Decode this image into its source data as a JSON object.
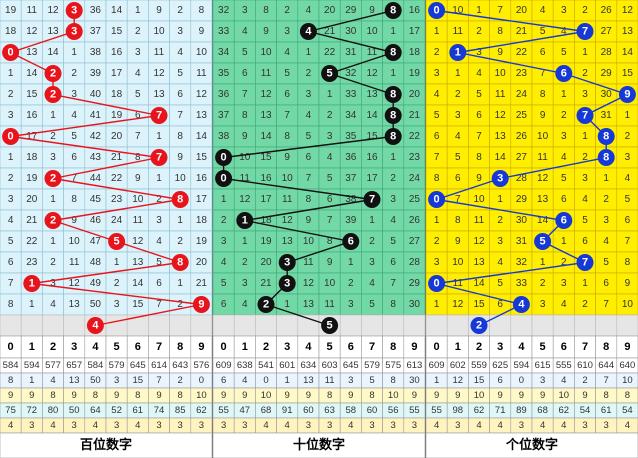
{
  "header": [
    0,
    1,
    2,
    3,
    4,
    5,
    6,
    7,
    8,
    9
  ],
  "panels": [
    {
      "label": "百位数字",
      "rows": [
        {
          "cells": [
            19,
            11,
            12,
            null,
            36,
            14,
            1,
            9,
            2,
            8
          ],
          "drawn": 3
        },
        {
          "cells": [
            18,
            12,
            13,
            null,
            37,
            15,
            2,
            10,
            3,
            9
          ],
          "drawn": 3
        },
        {
          "cells": [
            null,
            13,
            14,
            1,
            38,
            16,
            3,
            11,
            4,
            10
          ],
          "drawn": 0
        },
        {
          "cells": [
            1,
            14,
            null,
            2,
            39,
            17,
            4,
            12,
            5,
            11
          ],
          "drawn": 2
        },
        {
          "cells": [
            2,
            15,
            null,
            3,
            40,
            18,
            5,
            13,
            6,
            12
          ],
          "drawn": 2
        },
        {
          "cells": [
            3,
            16,
            1,
            4,
            41,
            19,
            6,
            null,
            7,
            13
          ],
          "drawn": 7
        },
        {
          "cells": [
            null,
            17,
            2,
            5,
            42,
            20,
            7,
            1,
            8,
            14
          ],
          "drawn": 0
        },
        {
          "cells": [
            1,
            18,
            3,
            6,
            43,
            21,
            8,
            null,
            9,
            15
          ],
          "drawn": 7
        },
        {
          "cells": [
            2,
            19,
            null,
            7,
            44,
            22,
            9,
            1,
            10,
            16
          ],
          "drawn": 2
        },
        {
          "cells": [
            3,
            20,
            1,
            8,
            45,
            23,
            10,
            2,
            null,
            17
          ],
          "drawn": 8
        },
        {
          "cells": [
            4,
            21,
            null,
            9,
            46,
            24,
            11,
            3,
            1,
            18
          ],
          "drawn": 2
        },
        {
          "cells": [
            5,
            22,
            1,
            10,
            47,
            null,
            12,
            4,
            2,
            19
          ],
          "drawn": 5
        },
        {
          "cells": [
            6,
            23,
            2,
            11,
            48,
            1,
            13,
            5,
            null,
            20
          ],
          "drawn": 8
        },
        {
          "cells": [
            7,
            null,
            3,
            12,
            49,
            2,
            14,
            6,
            1,
            21
          ],
          "drawn": 1
        },
        {
          "cells": [
            8,
            1,
            4,
            13,
            50,
            3,
            15,
            7,
            2,
            null
          ],
          "drawn": 9
        },
        {
          "drawn": 4
        }
      ],
      "stats": [
        [
          584,
          594,
          577,
          657,
          584,
          579,
          645,
          614,
          643,
          576
        ],
        [
          8,
          1,
          4,
          13,
          50,
          3,
          15,
          7,
          2,
          0
        ],
        [
          9,
          9,
          8,
          9,
          8,
          9,
          8,
          9,
          8,
          10
        ],
        [
          75,
          72,
          80,
          50,
          64,
          52,
          61,
          74,
          85,
          62
        ],
        [
          4,
          3,
          4,
          3,
          4,
          3,
          4,
          3,
          3,
          3
        ]
      ]
    },
    {
      "label": "十位数字",
      "rows": [
        {
          "cells": [
            32,
            3,
            8,
            2,
            4,
            20,
            29,
            9,
            null,
            16
          ],
          "drawn": 8
        },
        {
          "cells": [
            33,
            4,
            9,
            3,
            null,
            21,
            30,
            10,
            1,
            17
          ],
          "drawn": 4
        },
        {
          "cells": [
            34,
            5,
            10,
            4,
            1,
            22,
            31,
            11,
            null,
            18
          ],
          "drawn": 8
        },
        {
          "cells": [
            35,
            6,
            11,
            5,
            2,
            null,
            32,
            12,
            1,
            19
          ],
          "drawn": 5
        },
        {
          "cells": [
            36,
            7,
            12,
            6,
            3,
            1,
            33,
            13,
            null,
            20
          ],
          "drawn": 8
        },
        {
          "cells": [
            37,
            8,
            13,
            7,
            4,
            2,
            34,
            14,
            null,
            21
          ],
          "drawn": 8
        },
        {
          "cells": [
            38,
            9,
            14,
            8,
            5,
            3,
            35,
            15,
            null,
            22
          ],
          "drawn": 8
        },
        {
          "cells": [
            null,
            10,
            15,
            9,
            6,
            4,
            36,
            16,
            1,
            23
          ],
          "drawn": 0
        },
        {
          "cells": [
            null,
            11,
            16,
            10,
            7,
            5,
            37,
            17,
            2,
            24
          ],
          "drawn": 0
        },
        {
          "cells": [
            1,
            12,
            17,
            11,
            8,
            6,
            38,
            null,
            3,
            25
          ],
          "drawn": 7
        },
        {
          "cells": [
            2,
            null,
            18,
            12,
            9,
            7,
            39,
            1,
            4,
            26
          ],
          "drawn": 1
        },
        {
          "cells": [
            3,
            1,
            19,
            13,
            10,
            8,
            null,
            2,
            5,
            27
          ],
          "drawn": 6
        },
        {
          "cells": [
            4,
            2,
            20,
            null,
            11,
            9,
            1,
            3,
            6,
            28
          ],
          "drawn": 3
        },
        {
          "cells": [
            5,
            3,
            21,
            null,
            12,
            10,
            2,
            4,
            7,
            29
          ],
          "drawn": 3
        },
        {
          "cells": [
            6,
            4,
            null,
            1,
            13,
            11,
            3,
            5,
            8,
            30
          ],
          "drawn": 2
        },
        {
          "drawn": 5
        }
      ],
      "stats": [
        [
          609,
          638,
          541,
          601,
          634,
          603,
          645,
          579,
          575,
          613
        ],
        [
          6,
          4,
          0,
          1,
          13,
          11,
          3,
          5,
          8,
          30
        ],
        [
          9,
          9,
          10,
          9,
          9,
          8,
          9,
          8,
          10,
          9
        ],
        [
          55,
          47,
          68,
          91,
          60,
          63,
          58,
          60,
          56,
          55
        ],
        [
          3,
          3,
          4,
          4,
          3,
          3,
          4,
          3,
          3,
          3
        ]
      ]
    },
    {
      "label": "个位数字",
      "rows": [
        {
          "cells": [
            null,
            10,
            1,
            7,
            20,
            4,
            3,
            2,
            26,
            12
          ],
          "drawn": 0
        },
        {
          "cells": [
            1,
            11,
            2,
            8,
            21,
            5,
            4,
            null,
            27,
            13
          ],
          "drawn": 7
        },
        {
          "cells": [
            2,
            null,
            3,
            9,
            22,
            6,
            5,
            1,
            28,
            14
          ],
          "drawn": 1
        },
        {
          "cells": [
            3,
            1,
            4,
            10,
            23,
            7,
            null,
            2,
            29,
            15
          ],
          "drawn": 6
        },
        {
          "cells": [
            4,
            2,
            5,
            11,
            24,
            8,
            1,
            3,
            30,
            null
          ],
          "drawn": 9
        },
        {
          "cells": [
            5,
            3,
            6,
            12,
            25,
            9,
            2,
            null,
            31,
            1
          ],
          "drawn": 7
        },
        {
          "cells": [
            6,
            4,
            7,
            13,
            26,
            10,
            3,
            1,
            null,
            2
          ],
          "drawn": 8
        },
        {
          "cells": [
            7,
            5,
            8,
            14,
            27,
            11,
            4,
            2,
            null,
            3
          ],
          "drawn": 8
        },
        {
          "cells": [
            8,
            6,
            9,
            null,
            28,
            12,
            5,
            3,
            1,
            4
          ],
          "drawn": 3
        },
        {
          "cells": [
            null,
            7,
            10,
            1,
            29,
            13,
            6,
            4,
            2,
            5
          ],
          "drawn": 0
        },
        {
          "cells": [
            1,
            8,
            11,
            2,
            30,
            14,
            null,
            5,
            3,
            6
          ],
          "drawn": 6
        },
        {
          "cells": [
            2,
            9,
            12,
            3,
            31,
            null,
            1,
            6,
            4,
            7
          ],
          "drawn": 5
        },
        {
          "cells": [
            3,
            10,
            13,
            4,
            32,
            1,
            2,
            null,
            5,
            8
          ],
          "drawn": 7
        },
        {
          "cells": [
            null,
            11,
            14,
            5,
            33,
            2,
            3,
            1,
            6,
            9
          ],
          "drawn": 0
        },
        {
          "cells": [
            1,
            12,
            15,
            6,
            null,
            3,
            4,
            2,
            7,
            10
          ],
          "drawn": 4
        },
        {
          "drawn": 2
        }
      ],
      "stats": [
        [
          609,
          602,
          559,
          625,
          594,
          615,
          555,
          610,
          644,
          640
        ],
        [
          1,
          12,
          15,
          6,
          0,
          3,
          4,
          2,
          7,
          10
        ],
        [
          9,
          9,
          10,
          9,
          9,
          9,
          10,
          9,
          8,
          8
        ],
        [
          55,
          98,
          62,
          71,
          89,
          68,
          62,
          54,
          61,
          54
        ],
        [
          4,
          3,
          4,
          4,
          3,
          4,
          4,
          3,
          3,
          4
        ]
      ]
    }
  ]
}
